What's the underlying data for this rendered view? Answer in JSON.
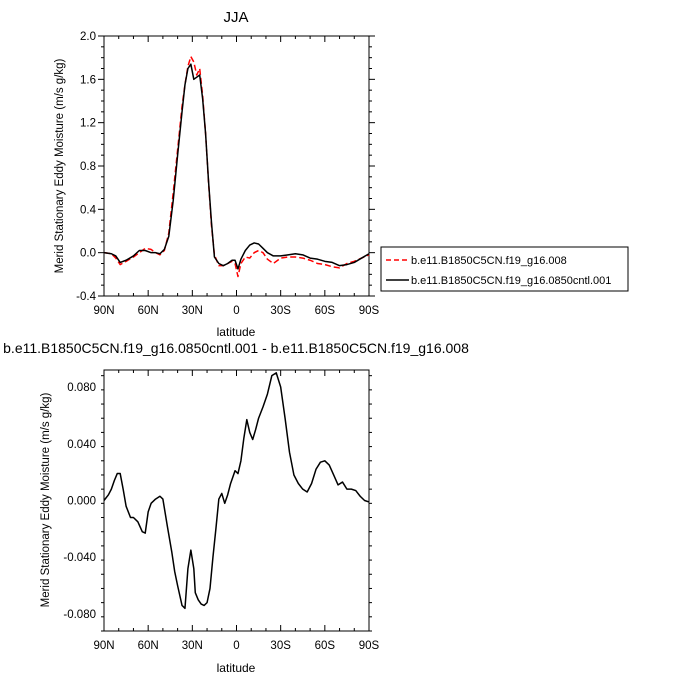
{
  "chart_data": [
    {
      "type": "line",
      "title": "JJA",
      "xlabel": "latitude",
      "ylabel": "Merid Stationary Eddy Moisture (m/s g/kg)",
      "xlim": [
        -90,
        90
      ],
      "ylim": [
        -0.4,
        2.0
      ],
      "xticks": [
        -90,
        -60,
        -30,
        0,
        30,
        60,
        90
      ],
      "xtick_labels": [
        "90N",
        "60N",
        "30N",
        "0",
        "30S",
        "60S",
        "90S"
      ],
      "yticks": [
        -0.4,
        0.0,
        0.4,
        0.8,
        1.2,
        1.6,
        2.0
      ],
      "ytick_labels": [
        "-0.4",
        "0.0",
        "0.4",
        "0.8",
        "1.2",
        "1.6",
        "2.0"
      ],
      "legend_position": "right",
      "series": [
        {
          "name": "b.e11.B1850C5CN.f19_g16.008",
          "color": "#ff0000",
          "dash": "dashed",
          "x": [
            -90,
            -85,
            -82,
            -79,
            -75,
            -70,
            -66,
            -62,
            -58,
            -55,
            -52,
            -49,
            -46,
            -43,
            -40,
            -37,
            -35,
            -33,
            -31,
            -29,
            -27,
            -25,
            -23,
            -21,
            -19,
            -17,
            -15,
            -12,
            -9,
            -6,
            -3,
            -1,
            1,
            3,
            6,
            9,
            12,
            15,
            18,
            21,
            25,
            30,
            35,
            40,
            45,
            50,
            55,
            60,
            65,
            70,
            75,
            80,
            85,
            90
          ],
          "y": [
            0.0,
            -0.01,
            -0.05,
            -0.11,
            -0.08,
            -0.04,
            0.0,
            0.04,
            0.03,
            0.0,
            -0.02,
            0.02,
            0.18,
            0.55,
            0.95,
            1.35,
            1.55,
            1.72,
            1.81,
            1.76,
            1.64,
            1.7,
            1.45,
            1.1,
            0.65,
            0.25,
            -0.02,
            -0.12,
            -0.12,
            -0.1,
            -0.08,
            -0.1,
            -0.22,
            -0.1,
            -0.04,
            -0.05,
            0.0,
            0.02,
            0.0,
            -0.06,
            -0.1,
            -0.05,
            -0.04,
            -0.04,
            -0.05,
            -0.07,
            -0.1,
            -0.11,
            -0.13,
            -0.14,
            -0.1,
            -0.08,
            -0.05,
            -0.02
          ]
        },
        {
          "name": "b.e11.B1850C5CN.f19_g16.0850cntl.001",
          "color": "#000000",
          "dash": "solid",
          "x": [
            -90,
            -85,
            -82,
            -79,
            -75,
            -70,
            -66,
            -62,
            -58,
            -55,
            -52,
            -49,
            -46,
            -43,
            -40,
            -37,
            -35,
            -33,
            -31,
            -29,
            -27,
            -25,
            -23,
            -21,
            -19,
            -17,
            -15,
            -12,
            -9,
            -6,
            -3,
            -1,
            1,
            3,
            6,
            9,
            12,
            15,
            18,
            21,
            25,
            30,
            35,
            40,
            45,
            50,
            55,
            60,
            65,
            70,
            75,
            80,
            85,
            90
          ],
          "y": [
            0.0,
            -0.01,
            -0.03,
            -0.09,
            -0.07,
            -0.03,
            0.02,
            0.02,
            0.0,
            0.0,
            -0.01,
            0.03,
            0.15,
            0.48,
            0.9,
            1.3,
            1.55,
            1.7,
            1.74,
            1.6,
            1.62,
            1.64,
            1.42,
            1.1,
            0.66,
            0.28,
            -0.04,
            -0.1,
            -0.12,
            -0.1,
            -0.07,
            -0.07,
            -0.15,
            -0.06,
            0.02,
            0.07,
            0.09,
            0.08,
            0.04,
            0.0,
            -0.03,
            -0.03,
            -0.02,
            -0.01,
            -0.02,
            -0.05,
            -0.06,
            -0.08,
            -0.09,
            -0.12,
            -0.11,
            -0.09,
            -0.05,
            -0.01
          ]
        }
      ]
    },
    {
      "type": "line",
      "title": "b.e11.B1850C5CN.f19_g16.0850cntl.001 - b.e11.B1850C5CN.f19_g16.008",
      "xlabel": "latitude",
      "ylabel": "Merid Stationary Eddy Moisture (m/s g/kg)",
      "xlim": [
        -90,
        90
      ],
      "ylim": [
        -0.092,
        0.092
      ],
      "xticks": [
        -90,
        -60,
        -30,
        0,
        30,
        60,
        90
      ],
      "xtick_labels": [
        "90N",
        "60N",
        "30N",
        "0",
        "30S",
        "60S",
        "90S"
      ],
      "yticks": [
        -0.08,
        -0.04,
        0.0,
        0.04,
        0.08
      ],
      "ytick_labels": [
        "-0.080",
        "-0.040",
        "0.000",
        "0.040",
        "0.080"
      ],
      "series": [
        {
          "color": "#000000",
          "dash": "solid",
          "x": [
            -90,
            -87,
            -85,
            -83,
            -81,
            -79,
            -77,
            -75,
            -72,
            -70,
            -67,
            -64,
            -62,
            -60,
            -58,
            -55,
            -52,
            -50,
            -47,
            -44,
            -42,
            -40,
            -37,
            -35,
            -33,
            -31,
            -29,
            -28,
            -26,
            -24,
            -22,
            -20,
            -18,
            -16,
            -14,
            -12,
            -10,
            -8,
            -6,
            -4,
            -2,
            -1,
            0,
            1,
            3,
            5,
            7,
            9,
            11,
            13,
            15,
            18,
            21,
            24,
            27,
            30,
            33,
            36,
            39,
            42,
            45,
            48,
            51,
            54,
            57,
            60,
            63,
            66,
            69,
            72,
            75,
            78,
            81,
            84,
            87,
            90
          ],
          "y": [
            0.0,
            0.004,
            0.008,
            0.014,
            0.019,
            0.019,
            0.008,
            -0.004,
            -0.012,
            -0.012,
            -0.015,
            -0.022,
            -0.023,
            -0.008,
            -0.002,
            0.001,
            0.003,
            0.001,
            -0.018,
            -0.036,
            -0.05,
            -0.06,
            -0.074,
            -0.076,
            -0.048,
            -0.035,
            -0.048,
            -0.065,
            -0.07,
            -0.073,
            -0.074,
            -0.072,
            -0.062,
            -0.04,
            -0.02,
            0.001,
            0.005,
            -0.002,
            0.004,
            0.012,
            0.018,
            0.021,
            0.02,
            0.019,
            0.028,
            0.044,
            0.057,
            0.048,
            0.043,
            0.05,
            0.058,
            0.066,
            0.075,
            0.088,
            0.09,
            0.08,
            0.058,
            0.034,
            0.018,
            0.012,
            0.008,
            0.006,
            0.012,
            0.022,
            0.027,
            0.028,
            0.025,
            0.018,
            0.011,
            0.013,
            0.008,
            0.008,
            0.007,
            0.003,
            0.0,
            -0.001
          ]
        }
      ]
    }
  ]
}
